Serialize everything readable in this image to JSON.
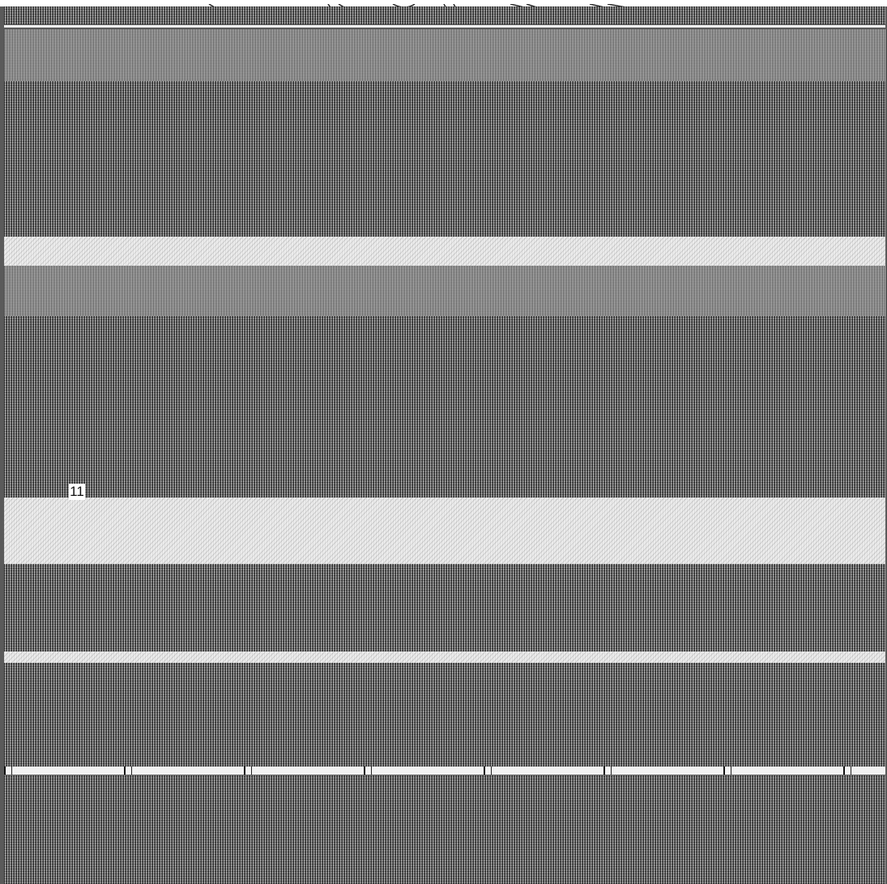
{
  "marker": {
    "label": "11"
  },
  "colors": {
    "background": "#5a5a5a",
    "light_band": "#ececec",
    "text": "#111111"
  }
}
